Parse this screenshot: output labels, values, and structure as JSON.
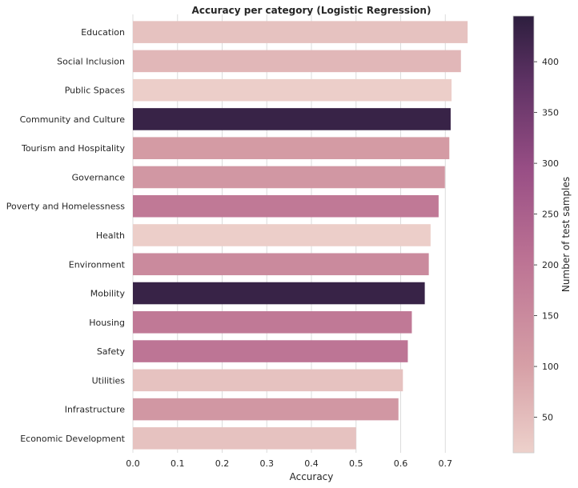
{
  "chart_data": {
    "type": "bar",
    "orientation": "horizontal",
    "title": "Accuracy per category (Logistic Regression)",
    "xlabel": "Accuracy",
    "ylabel": "",
    "xlim": [
      0,
      0.8
    ],
    "xticks": [
      "0.0",
      "0.1",
      "0.2",
      "0.3",
      "0.4",
      "0.5",
      "0.6",
      "0.7"
    ],
    "grid": true,
    "categories": [
      "Education",
      "Social Inclusion",
      "Public Spaces",
      "Community and Culture",
      "Tourism and Hospitality",
      "Governance",
      "Poverty and Homelessness",
      "Health",
      "Environment",
      "Mobility",
      "Housing",
      "Safety",
      "Utilities",
      "Infrastructure",
      "Economic Development"
    ],
    "values": [
      0.75,
      0.735,
      0.714,
      0.712,
      0.709,
      0.699,
      0.685,
      0.667,
      0.663,
      0.654,
      0.625,
      0.616,
      0.605,
      0.595,
      0.5
    ],
    "test_samples": [
      40,
      60,
      20,
      430,
      110,
      120,
      190,
      20,
      150,
      430,
      190,
      200,
      40,
      120,
      40
    ],
    "colorbar": {
      "label": "Number of test samples",
      "range": [
        15,
        445
      ],
      "ticks": [
        "50",
        "100",
        "150",
        "200",
        "250",
        "300",
        "350",
        "400"
      ],
      "colormap_low": "#edd1cb",
      "colormap_high": "#2d1e3e"
    }
  }
}
